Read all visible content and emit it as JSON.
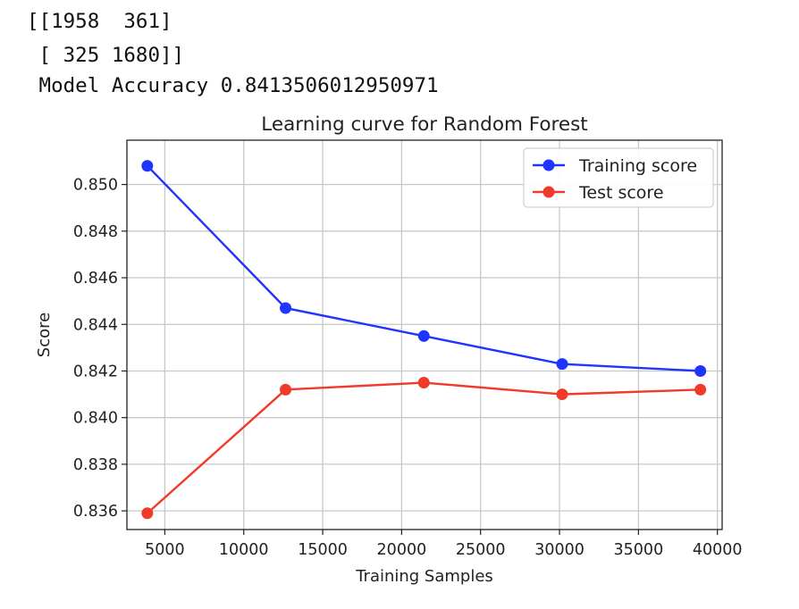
{
  "output": {
    "matrix_line_1": "[[1958  361]",
    "matrix_line_2": " [ 325 1680]]",
    "accuracy_line": " Model Accuracy 0.8413506012950971"
  },
  "chart_data": {
    "type": "line",
    "title": "Learning curve for Random Forest",
    "xlabel": "Training Samples",
    "ylabel": "Score",
    "xlim": [
      2600,
      40300
    ],
    "ylim": [
      0.8352,
      0.8519
    ],
    "grid": true,
    "legend_position": "upper right",
    "x": [
      3892,
      12650,
      21408,
      30166,
      38924
    ],
    "xticks": [
      5000,
      10000,
      15000,
      20000,
      25000,
      30000,
      35000,
      40000
    ],
    "xtick_labels": [
      "5000",
      "10000",
      "15000",
      "20000",
      "25000",
      "30000",
      "35000",
      "40000"
    ],
    "yticks": [
      0.836,
      0.838,
      0.84,
      0.842,
      0.844,
      0.846,
      0.848,
      0.85
    ],
    "ytick_labels": [
      "0.836",
      "0.838",
      "0.840",
      "0.842",
      "0.844",
      "0.846",
      "0.848",
      "0.850"
    ],
    "series": [
      {
        "name": "Training score",
        "color": "#1f35ff",
        "values": [
          0.8508,
          0.8447,
          0.8435,
          0.8423,
          0.842
        ]
      },
      {
        "name": "Test score",
        "color": "#f03a2a",
        "values": [
          0.8359,
          0.8412,
          0.8415,
          0.841,
          0.8412
        ]
      }
    ]
  }
}
